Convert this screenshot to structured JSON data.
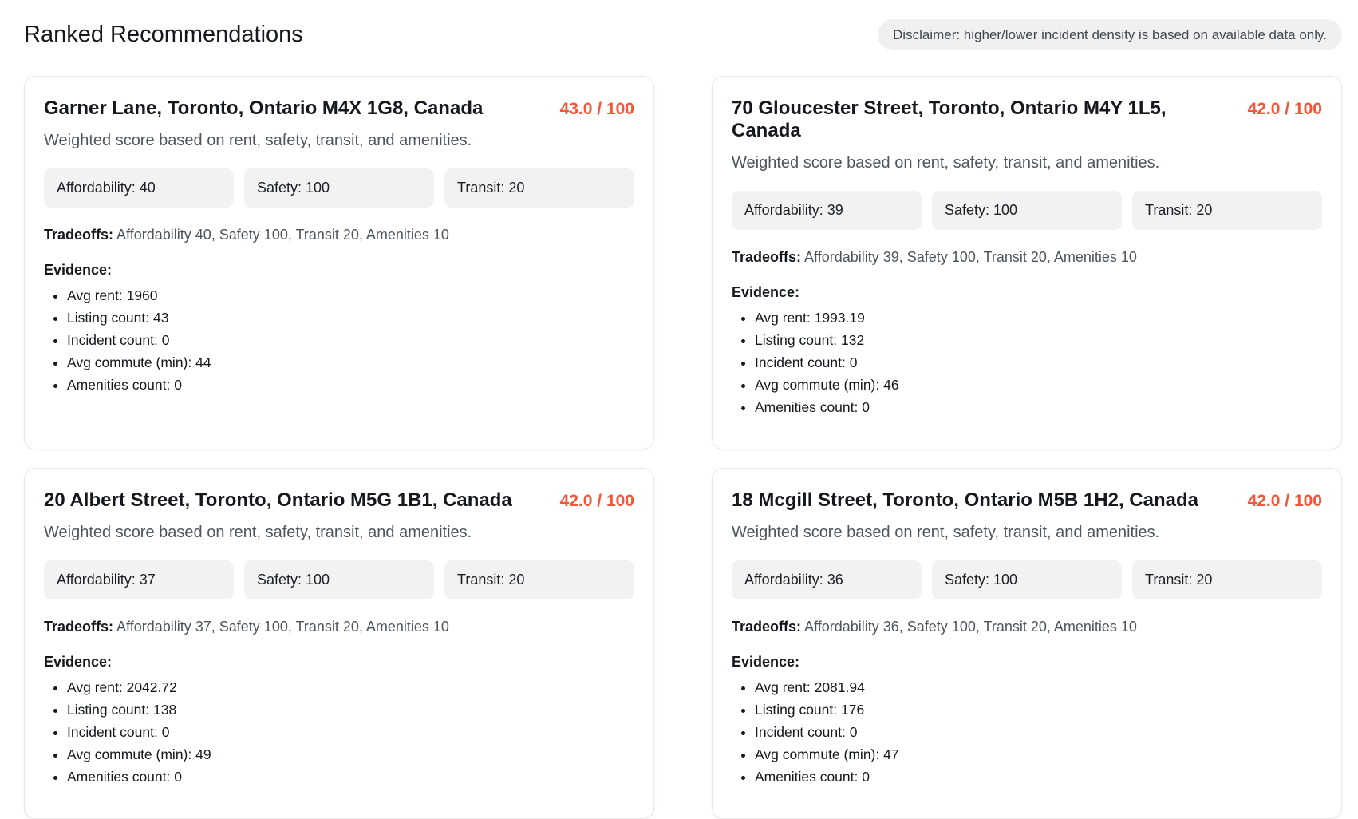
{
  "header": {
    "title": "Ranked Recommendations",
    "disclaimer": "Disclaimer: higher/lower incident density is based on available data only."
  },
  "labels": {
    "subtitle": "Weighted score based on rent, safety, transit, and amenities.",
    "tradeoffs": "Tradeoffs:",
    "evidence": "Evidence:"
  },
  "cards": [
    {
      "address": "Garner Lane, Toronto, Ontario M4X 1G8, Canada",
      "score": "43.0 / 100",
      "badges": [
        "Affordability: 40",
        "Safety: 100",
        "Transit: 20"
      ],
      "tradeoffs": "Affordability 40, Safety 100, Transit 20, Amenities 10",
      "evidence": [
        "Avg rent: 1960",
        "Listing count: 43",
        "Incident count: 0",
        "Avg commute (min): 44",
        "Amenities count: 0"
      ]
    },
    {
      "address": "70 Gloucester Street, Toronto, Ontario M4Y 1L5, Canada",
      "score": "42.0 / 100",
      "badges": [
        "Affordability: 39",
        "Safety: 100",
        "Transit: 20"
      ],
      "tradeoffs": "Affordability 39, Safety 100, Transit 20, Amenities 10",
      "evidence": [
        "Avg rent: 1993.19",
        "Listing count: 132",
        "Incident count: 0",
        "Avg commute (min): 46",
        "Amenities count: 0"
      ]
    },
    {
      "address": "20 Albert Street, Toronto, Ontario M5G 1B1, Canada",
      "score": "42.0 / 100",
      "badges": [
        "Affordability: 37",
        "Safety: 100",
        "Transit: 20"
      ],
      "tradeoffs": "Affordability 37, Safety 100, Transit 20, Amenities 10",
      "evidence": [
        "Avg rent: 2042.72",
        "Listing count: 138",
        "Incident count: 0",
        "Avg commute (min): 49",
        "Amenities count: 0"
      ]
    },
    {
      "address": "18 Mcgill Street, Toronto, Ontario M5B 1H2, Canada",
      "score": "42.0 / 100",
      "badges": [
        "Affordability: 36",
        "Safety: 100",
        "Transit: 20"
      ],
      "tradeoffs": "Affordability 36, Safety 100, Transit 20, Amenities 10",
      "evidence": [
        "Avg rent: 2081.94",
        "Listing count: 176",
        "Incident count: 0",
        "Avg commute (min): 47",
        "Amenities count: 0"
      ]
    }
  ],
  "colors": {
    "score_accent": "#f65537",
    "badge_bg": "#f2f2f2",
    "card_border": "#e7e7e8",
    "disclaimer_bg": "#f0f0f1",
    "text_primary": "#15181d",
    "text_secondary": "#4e555d"
  }
}
